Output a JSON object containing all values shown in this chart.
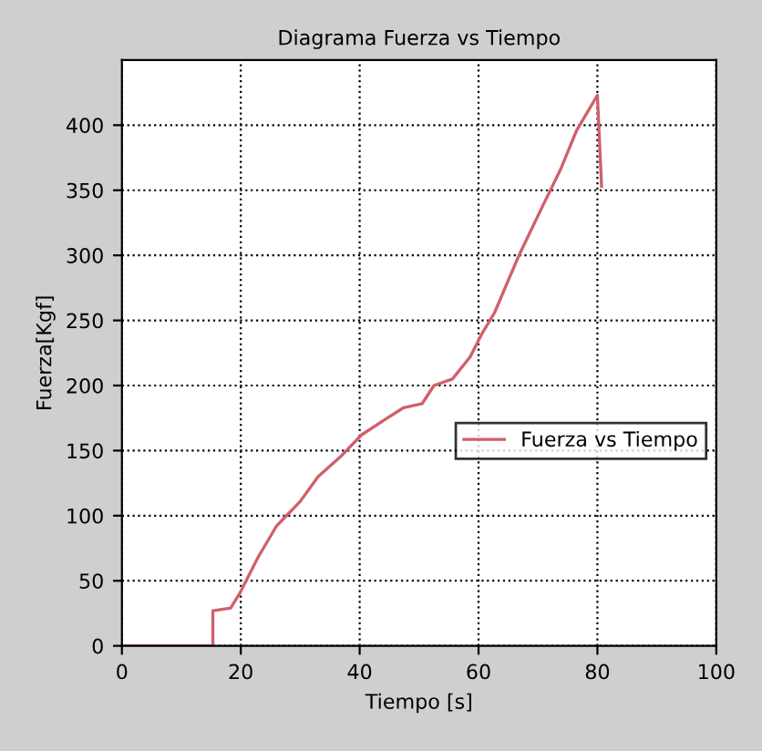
{
  "chart_data": {
    "type": "line",
    "title": "Diagrama Fuerza vs Tiempo",
    "xlabel": "Tiempo [s]",
    "ylabel": "Fuerza[Kgf]",
    "series": [
      {
        "name": "Fuerza vs Tiempo",
        "color": "#d0606a",
        "x": [
          0,
          15.3,
          15.3,
          18.3,
          19.9,
          22.9,
          26,
          30,
          33,
          36.7,
          40.3,
          44.3,
          47.4,
          50.5,
          52.5,
          55.6,
          58.6,
          60.6,
          62.7,
          66.8,
          70.8,
          73.9,
          76.5,
          80,
          80.7
        ],
        "values": [
          0,
          0,
          27,
          29,
          41,
          68,
          92,
          111,
          130,
          145,
          162,
          174,
          183,
          186,
          200,
          205,
          222,
          240,
          256,
          300,
          338,
          367,
          396,
          423,
          353
        ]
      }
    ],
    "xlim": [
      0,
      100
    ],
    "xticks": [
      0,
      20,
      40,
      60,
      80,
      100
    ],
    "ylim": [
      0,
      450
    ],
    "yticks": [
      0,
      50,
      100,
      150,
      200,
      250,
      300,
      350,
      400
    ],
    "grid": true,
    "legend": "right",
    "marker": "none",
    "line_style": "solid"
  }
}
